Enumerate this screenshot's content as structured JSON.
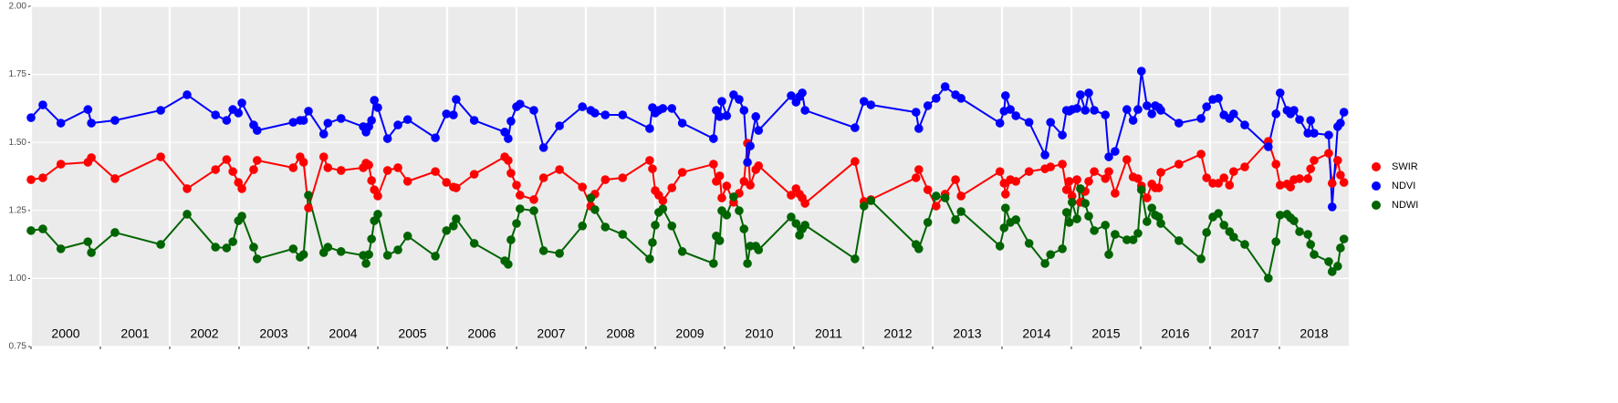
{
  "chart_data": {
    "type": "line",
    "x": [
      2000.0,
      2000.17,
      2000.43,
      2000.82,
      2000.87,
      2001.21,
      2001.87,
      2002.25,
      2002.66,
      2002.82,
      2002.91,
      2002.99,
      2003.04,
      2003.21,
      2003.26,
      2003.78,
      2003.88,
      2003.93,
      2004.0,
      2004.22,
      2004.28,
      2004.47,
      2004.79,
      2004.83,
      2004.87,
      2004.91,
      2004.95,
      2005.0,
      2005.14,
      2005.29,
      2005.43,
      2005.83,
      2005.99,
      2006.09,
      2006.13,
      2006.39,
      2006.83,
      2006.88,
      2006.92,
      2007.0,
      2007.05,
      2007.25,
      2007.39,
      2007.62,
      2007.95,
      2008.07,
      2008.13,
      2008.28,
      2008.53,
      2008.92,
      2008.96,
      2009.0,
      2009.05,
      2009.11,
      2009.24,
      2009.39,
      2009.84,
      2009.88,
      2009.93,
      2009.96,
      2010.03,
      2010.13,
      2010.21,
      2010.28,
      2010.33,
      2010.37,
      2010.45,
      2010.49,
      2010.96,
      2011.03,
      2011.08,
      2011.12,
      2011.16,
      2011.88,
      2012.01,
      2012.11,
      2012.76,
      2012.8,
      2012.93,
      2013.05,
      2013.18,
      2013.33,
      2013.41,
      2013.97,
      2014.03,
      2014.05,
      2014.12,
      2014.2,
      2014.39,
      2014.62,
      2014.7,
      2014.87,
      2014.93,
      2014.97,
      2015.01,
      2015.08,
      2015.13,
      2015.2,
      2015.25,
      2015.33,
      2015.49,
      2015.54,
      2015.63,
      2015.8,
      2015.89,
      2015.96,
      2016.01,
      2016.09,
      2016.16,
      2016.21,
      2016.26,
      2016.29,
      2016.55,
      2016.87,
      2016.95,
      2017.04,
      2017.12,
      2017.2,
      2017.28,
      2017.34,
      2017.5,
      2017.84,
      2017.95,
      2018.01,
      2018.11,
      2018.16,
      2018.21,
      2018.29,
      2018.41,
      2018.45,
      2018.5,
      2018.71,
      2018.76,
      2018.84,
      2018.88,
      2018.93
    ],
    "series": [
      {
        "name": "SWIR",
        "color": "#ff0000",
        "values": [
          1.363,
          1.37,
          1.42,
          1.427,
          1.444,
          1.367,
          1.447,
          1.33,
          1.4,
          1.437,
          1.393,
          1.353,
          1.33,
          1.4,
          1.434,
          1.407,
          1.447,
          1.427,
          1.259,
          1.447,
          1.407,
          1.397,
          1.407,
          1.424,
          1.417,
          1.36,
          1.326,
          1.303,
          1.397,
          1.407,
          1.357,
          1.393,
          1.353,
          1.336,
          1.333,
          1.383,
          1.447,
          1.434,
          1.387,
          1.343,
          1.306,
          1.29,
          1.37,
          1.4,
          1.336,
          1.266,
          1.31,
          1.363,
          1.37,
          1.434,
          1.403,
          1.323,
          1.306,
          1.286,
          1.333,
          1.39,
          1.42,
          1.357,
          1.377,
          1.296,
          1.34,
          1.28,
          1.313,
          1.357,
          1.497,
          1.343,
          1.4,
          1.414,
          1.306,
          1.33,
          1.31,
          1.296,
          1.276,
          1.43,
          1.283,
          1.29,
          1.37,
          1.4,
          1.326,
          1.266,
          1.31,
          1.363,
          1.303,
          1.393,
          1.35,
          1.31,
          1.363,
          1.357,
          1.393,
          1.403,
          1.41,
          1.42,
          1.326,
          1.357,
          1.303,
          1.363,
          1.28,
          1.32,
          1.357,
          1.393,
          1.367,
          1.393,
          1.313,
          1.437,
          1.373,
          1.367,
          1.34,
          1.296,
          1.347,
          1.333,
          1.333,
          1.39,
          1.42,
          1.457,
          1.37,
          1.35,
          1.35,
          1.37,
          1.343,
          1.393,
          1.41,
          1.504,
          1.42,
          1.343,
          1.347,
          1.336,
          1.363,
          1.367,
          1.367,
          1.403,
          1.434,
          1.46,
          1.35,
          1.434,
          1.38,
          1.353
        ]
      },
      {
        "name": "NDVI",
        "color": "#0000ff",
        "values": [
          1.591,
          1.638,
          1.571,
          1.621,
          1.571,
          1.581,
          1.618,
          1.675,
          1.601,
          1.581,
          1.621,
          1.608,
          1.645,
          1.564,
          1.544,
          1.574,
          1.581,
          1.581,
          1.615,
          1.531,
          1.571,
          1.588,
          1.558,
          1.538,
          1.558,
          1.581,
          1.655,
          1.628,
          1.514,
          1.564,
          1.584,
          1.517,
          1.605,
          1.601,
          1.658,
          1.581,
          1.538,
          1.514,
          1.578,
          1.631,
          1.641,
          1.618,
          1.481,
          1.561,
          1.631,
          1.618,
          1.608,
          1.601,
          1.601,
          1.551,
          1.628,
          1.608,
          1.618,
          1.625,
          1.625,
          1.571,
          1.514,
          1.618,
          1.595,
          1.651,
          1.598,
          1.675,
          1.658,
          1.618,
          1.427,
          1.487,
          1.595,
          1.544,
          1.672,
          1.648,
          1.668,
          1.682,
          1.618,
          1.554,
          1.651,
          1.638,
          1.611,
          1.551,
          1.635,
          1.662,
          1.705,
          1.675,
          1.662,
          1.571,
          1.615,
          1.672,
          1.621,
          1.598,
          1.574,
          1.454,
          1.574,
          1.527,
          1.618,
          1.615,
          1.621,
          1.625,
          1.675,
          1.618,
          1.682,
          1.618,
          1.601,
          1.447,
          1.467,
          1.621,
          1.581,
          1.621,
          1.762,
          1.635,
          1.605,
          1.635,
          1.628,
          1.618,
          1.571,
          1.588,
          1.631,
          1.658,
          1.662,
          1.601,
          1.588,
          1.605,
          1.564,
          1.484,
          1.605,
          1.682,
          1.618,
          1.605,
          1.618,
          1.584,
          1.534,
          1.581,
          1.534,
          1.527,
          1.263,
          1.558,
          1.571,
          1.611
        ]
      },
      {
        "name": "NDWI",
        "color": "#006400",
        "values": [
          1.176,
          1.182,
          1.109,
          1.135,
          1.095,
          1.169,
          1.125,
          1.236,
          1.115,
          1.112,
          1.135,
          1.212,
          1.229,
          1.115,
          1.072,
          1.109,
          1.078,
          1.088,
          1.306,
          1.095,
          1.115,
          1.099,
          1.085,
          1.055,
          1.088,
          1.145,
          1.212,
          1.236,
          1.085,
          1.105,
          1.156,
          1.082,
          1.176,
          1.193,
          1.219,
          1.129,
          1.065,
          1.052,
          1.142,
          1.202,
          1.256,
          1.249,
          1.102,
          1.092,
          1.193,
          1.296,
          1.253,
          1.189,
          1.162,
          1.072,
          1.132,
          1.196,
          1.243,
          1.256,
          1.193,
          1.099,
          1.055,
          1.156,
          1.139,
          1.249,
          1.233,
          1.3,
          1.249,
          1.182,
          1.055,
          1.119,
          1.119,
          1.105,
          1.226,
          1.202,
          1.159,
          1.182,
          1.196,
          1.072,
          1.266,
          1.286,
          1.125,
          1.109,
          1.206,
          1.303,
          1.296,
          1.216,
          1.246,
          1.119,
          1.186,
          1.259,
          1.206,
          1.216,
          1.129,
          1.055,
          1.088,
          1.109,
          1.243,
          1.206,
          1.28,
          1.219,
          1.33,
          1.276,
          1.229,
          1.176,
          1.196,
          1.088,
          1.162,
          1.142,
          1.142,
          1.166,
          1.326,
          1.209,
          1.259,
          1.233,
          1.226,
          1.202,
          1.139,
          1.072,
          1.169,
          1.226,
          1.239,
          1.196,
          1.172,
          1.152,
          1.125,
          1.001,
          1.135,
          1.233,
          1.236,
          1.223,
          1.212,
          1.172,
          1.162,
          1.125,
          1.088,
          1.062,
          1.025,
          1.045,
          1.112,
          1.145
        ]
      }
    ],
    "xlim": [
      2000,
      2019
    ],
    "xticks": [
      2000,
      2001,
      2002,
      2003,
      2004,
      2005,
      2006,
      2007,
      2008,
      2009,
      2010,
      2011,
      2012,
      2013,
      2014,
      2015,
      2016,
      2017,
      2018
    ],
    "ylim": [
      0.75,
      2.0
    ],
    "yticks": [
      {
        "value": 0.75,
        "label": "0.75"
      },
      {
        "value": 1.0,
        "label": "1.00"
      },
      {
        "value": 1.25,
        "label": "1.25"
      },
      {
        "value": 1.5,
        "label": "1.50"
      },
      {
        "value": 1.75,
        "label": "1.75"
      },
      {
        "value": 2.0,
        "label": "2.00"
      }
    ],
    "grid": true,
    "legend": "right"
  }
}
